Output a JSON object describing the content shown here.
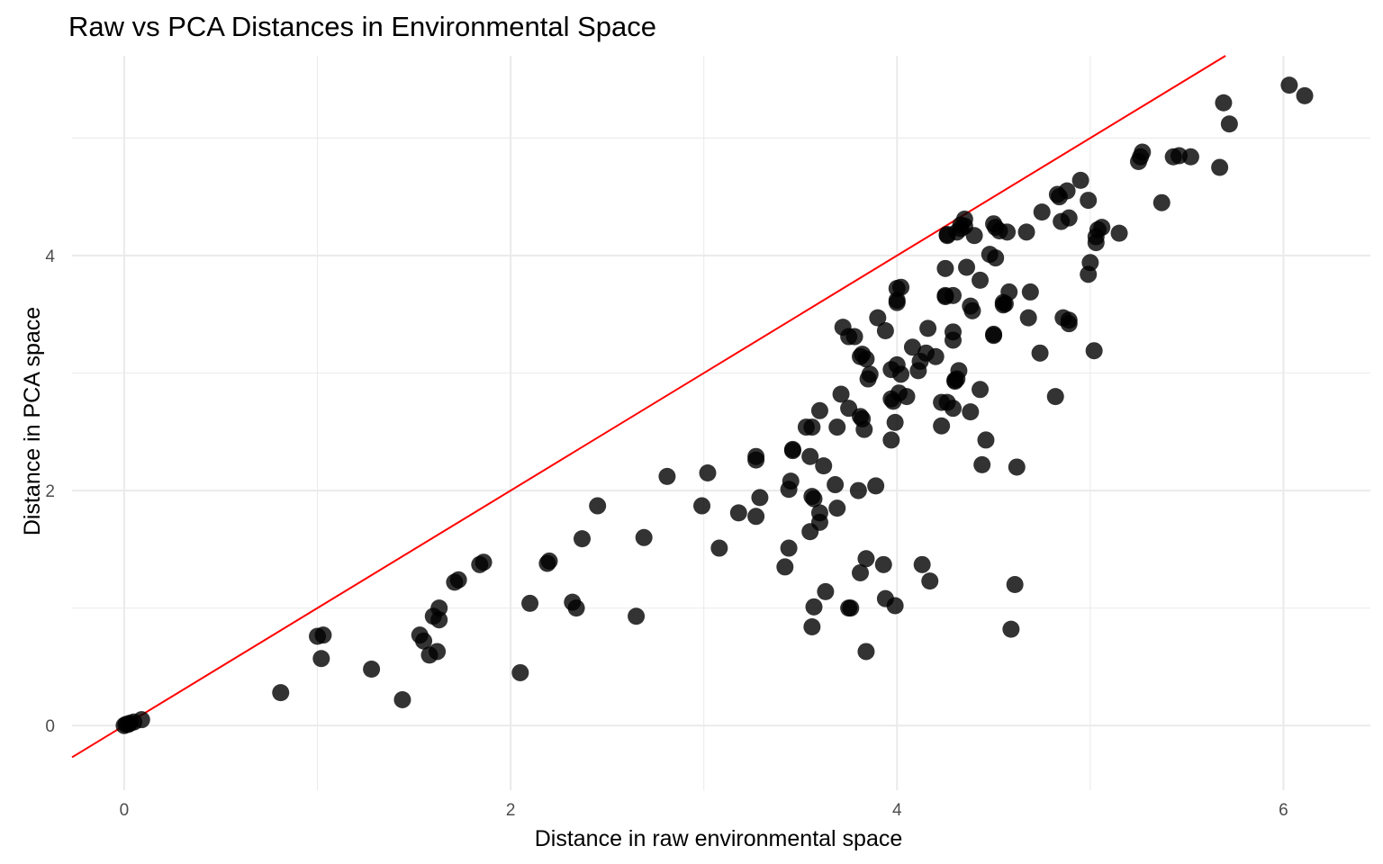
{
  "chart_data": {
    "type": "scatter",
    "title": "Raw vs PCA Distances in Environmental Space",
    "xlabel": "Distance in raw environmental space",
    "ylabel": "Distance in PCA space",
    "xlim": [
      -0.27,
      6.45
    ],
    "ylim": [
      -0.55,
      5.7
    ],
    "x_ticks": [
      0,
      2,
      4,
      6
    ],
    "y_ticks": [
      0,
      2,
      4
    ],
    "x_tick_labels": [
      "0",
      "2",
      "4",
      "6"
    ],
    "y_tick_labels": [
      "0",
      "2",
      "4"
    ],
    "grid": true,
    "point_color": "#000000",
    "point_opacity": 0.8,
    "reference_line": {
      "slope": 1,
      "intercept": 0,
      "color": "#ff0000"
    },
    "points": [
      [
        0,
        0
      ],
      [
        0.01,
        0.01
      ],
      [
        0.02,
        0.01
      ],
      [
        0.03,
        0.02
      ],
      [
        0.05,
        0.03
      ],
      [
        0.09,
        0.05
      ],
      [
        0.81,
        0.28
      ],
      [
        1,
        0.76
      ],
      [
        1.03,
        0.77
      ],
      [
        1.02,
        0.57
      ],
      [
        1.28,
        0.48
      ],
      [
        1.44,
        0.22
      ],
      [
        1.53,
        0.77
      ],
      [
        1.55,
        0.72
      ],
      [
        1.58,
        0.6
      ],
      [
        1.6,
        0.93
      ],
      [
        1.63,
        1.0
      ],
      [
        1.63,
        0.9
      ],
      [
        1.62,
        0.63
      ],
      [
        1.71,
        1.22
      ],
      [
        1.73,
        1.24
      ],
      [
        1.84,
        1.37
      ],
      [
        1.86,
        1.39
      ],
      [
        2.05,
        0.45
      ],
      [
        2.1,
        1.04
      ],
      [
        2.19,
        1.38
      ],
      [
        2.2,
        1.4
      ],
      [
        2.32,
        1.05
      ],
      [
        2.34,
        1.0
      ],
      [
        2.37,
        1.59
      ],
      [
        2.45,
        1.87
      ],
      [
        2.65,
        0.93
      ],
      [
        2.69,
        1.6
      ],
      [
        2.81,
        2.12
      ],
      [
        2.99,
        1.87
      ],
      [
        3.02,
        2.15
      ],
      [
        3.08,
        1.51
      ],
      [
        3.18,
        1.81
      ],
      [
        3.27,
        1.78
      ],
      [
        3.27,
        2.29
      ],
      [
        3.27,
        2.26
      ],
      [
        3.29,
        1.94
      ],
      [
        3.42,
        1.35
      ],
      [
        3.44,
        1.51
      ],
      [
        3.44,
        2.01
      ],
      [
        3.45,
        2.08
      ],
      [
        3.46,
        2.35
      ],
      [
        3.46,
        2.34
      ],
      [
        3.53,
        2.54
      ],
      [
        3.56,
        2.54
      ],
      [
        3.55,
        2.29
      ],
      [
        3.56,
        1.95
      ],
      [
        3.57,
        1.93
      ],
      [
        3.55,
        1.65
      ],
      [
        3.57,
        1.01
      ],
      [
        3.56,
        0.84
      ],
      [
        3.6,
        2.68
      ],
      [
        3.62,
        2.21
      ],
      [
        3.6,
        1.81
      ],
      [
        3.6,
        1.73
      ],
      [
        3.63,
        1.14
      ],
      [
        3.68,
        2.05
      ],
      [
        3.69,
        1.85
      ],
      [
        3.69,
        2.54
      ],
      [
        3.71,
        2.82
      ],
      [
        3.72,
        3.39
      ],
      [
        3.75,
        2.7
      ],
      [
        3.75,
        3.31
      ],
      [
        3.78,
        3.31
      ],
      [
        3.75,
        1.0
      ],
      [
        3.76,
        1.0
      ],
      [
        3.81,
        3.14
      ],
      [
        3.82,
        3.16
      ],
      [
        3.84,
        3.12
      ],
      [
        3.81,
        2.63
      ],
      [
        3.82,
        2.61
      ],
      [
        3.83,
        2.52
      ],
      [
        3.85,
        2.95
      ],
      [
        3.86,
        2.99
      ],
      [
        3.8,
        2.0
      ],
      [
        3.81,
        1.3
      ],
      [
        3.84,
        1.42
      ],
      [
        3.84,
        0.63
      ],
      [
        3.89,
        2.04
      ],
      [
        3.9,
        3.47
      ],
      [
        3.94,
        3.36
      ],
      [
        3.93,
        1.37
      ],
      [
        3.94,
        1.08
      ],
      [
        3.97,
        3.03
      ],
      [
        3.97,
        2.43
      ],
      [
        3.97,
        2.78
      ],
      [
        3.98,
        2.76
      ],
      [
        3.99,
        2.58
      ],
      [
        4.0,
        3.07
      ],
      [
        4.0,
        3.6
      ],
      [
        4.0,
        3.62
      ],
      [
        4.0,
        3.72
      ],
      [
        4.02,
        3.73
      ],
      [
        4.01,
        2.83
      ],
      [
        4.02,
        2.99
      ],
      [
        3.99,
        1.02
      ],
      [
        4.05,
        2.8
      ],
      [
        4.08,
        3.22
      ],
      [
        4.11,
        3.02
      ],
      [
        4.12,
        3.1
      ],
      [
        4.13,
        1.37
      ],
      [
        4.15,
        3.17
      ],
      [
        4.16,
        3.38
      ],
      [
        4.17,
        1.23
      ],
      [
        4.2,
        3.14
      ],
      [
        4.23,
        2.55
      ],
      [
        4.23,
        2.75
      ],
      [
        4.25,
        3.66
      ],
      [
        4.25,
        3.65
      ],
      [
        4.25,
        3.89
      ],
      [
        4.26,
        4.18
      ],
      [
        4.26,
        4.17
      ],
      [
        4.26,
        2.75
      ],
      [
        4.29,
        2.7
      ],
      [
        4.29,
        3.35
      ],
      [
        4.29,
        3.28
      ],
      [
        4.29,
        3.66
      ],
      [
        4.3,
        2.93
      ],
      [
        4.3,
        2.94
      ],
      [
        4.31,
        2.95
      ],
      [
        4.32,
        3.02
      ],
      [
        4.31,
        4.2
      ],
      [
        4.33,
        4.23
      ],
      [
        4.33,
        4.26
      ],
      [
        4.35,
        4.31
      ],
      [
        4.35,
        4.25
      ],
      [
        4.36,
        3.9
      ],
      [
        4.38,
        2.67
      ],
      [
        4.38,
        3.57
      ],
      [
        4.39,
        3.53
      ],
      [
        4.4,
        4.17
      ],
      [
        4.43,
        3.79
      ],
      [
        4.43,
        2.86
      ],
      [
        4.44,
        2.22
      ],
      [
        4.46,
        2.43
      ],
      [
        4.48,
        4.01
      ],
      [
        4.5,
        3.33
      ],
      [
        4.5,
        3.32
      ],
      [
        4.5,
        4.27
      ],
      [
        4.51,
        4.24
      ],
      [
        4.51,
        3.98
      ],
      [
        4.53,
        4.21
      ],
      [
        4.55,
        3.6
      ],
      [
        4.55,
        3.58
      ],
      [
        4.56,
        3.59
      ],
      [
        4.57,
        4.2
      ],
      [
        4.58,
        3.69
      ],
      [
        4.62,
        2.2
      ],
      [
        4.59,
        0.82
      ],
      [
        4.61,
        1.2
      ],
      [
        4.67,
        4.2
      ],
      [
        4.68,
        3.47
      ],
      [
        4.69,
        3.69
      ],
      [
        4.74,
        3.17
      ],
      [
        4.75,
        4.37
      ],
      [
        4.82,
        2.8
      ],
      [
        4.83,
        4.52
      ],
      [
        4.84,
        4.5
      ],
      [
        4.85,
        4.29
      ],
      [
        4.86,
        3.47
      ],
      [
        4.88,
        4.55
      ],
      [
        4.89,
        3.42
      ],
      [
        4.89,
        3.45
      ],
      [
        4.89,
        4.32
      ],
      [
        4.95,
        4.64
      ],
      [
        4.99,
        4.47
      ],
      [
        4.99,
        3.84
      ],
      [
        5.0,
        3.94
      ],
      [
        5.02,
        3.19
      ],
      [
        5.03,
        4.11
      ],
      [
        5.03,
        4.16
      ],
      [
        5.04,
        4.22
      ],
      [
        5.06,
        4.24
      ],
      [
        5.15,
        4.19
      ],
      [
        5.25,
        4.8
      ],
      [
        5.26,
        4.84
      ],
      [
        5.27,
        4.88
      ],
      [
        5.37,
        4.45
      ],
      [
        5.43,
        4.84
      ],
      [
        5.46,
        4.85
      ],
      [
        5.52,
        4.84
      ],
      [
        5.67,
        4.75
      ],
      [
        5.69,
        5.3
      ],
      [
        5.72,
        5.12
      ],
      [
        6.03,
        5.45
      ],
      [
        6.11,
        5.36
      ]
    ]
  }
}
